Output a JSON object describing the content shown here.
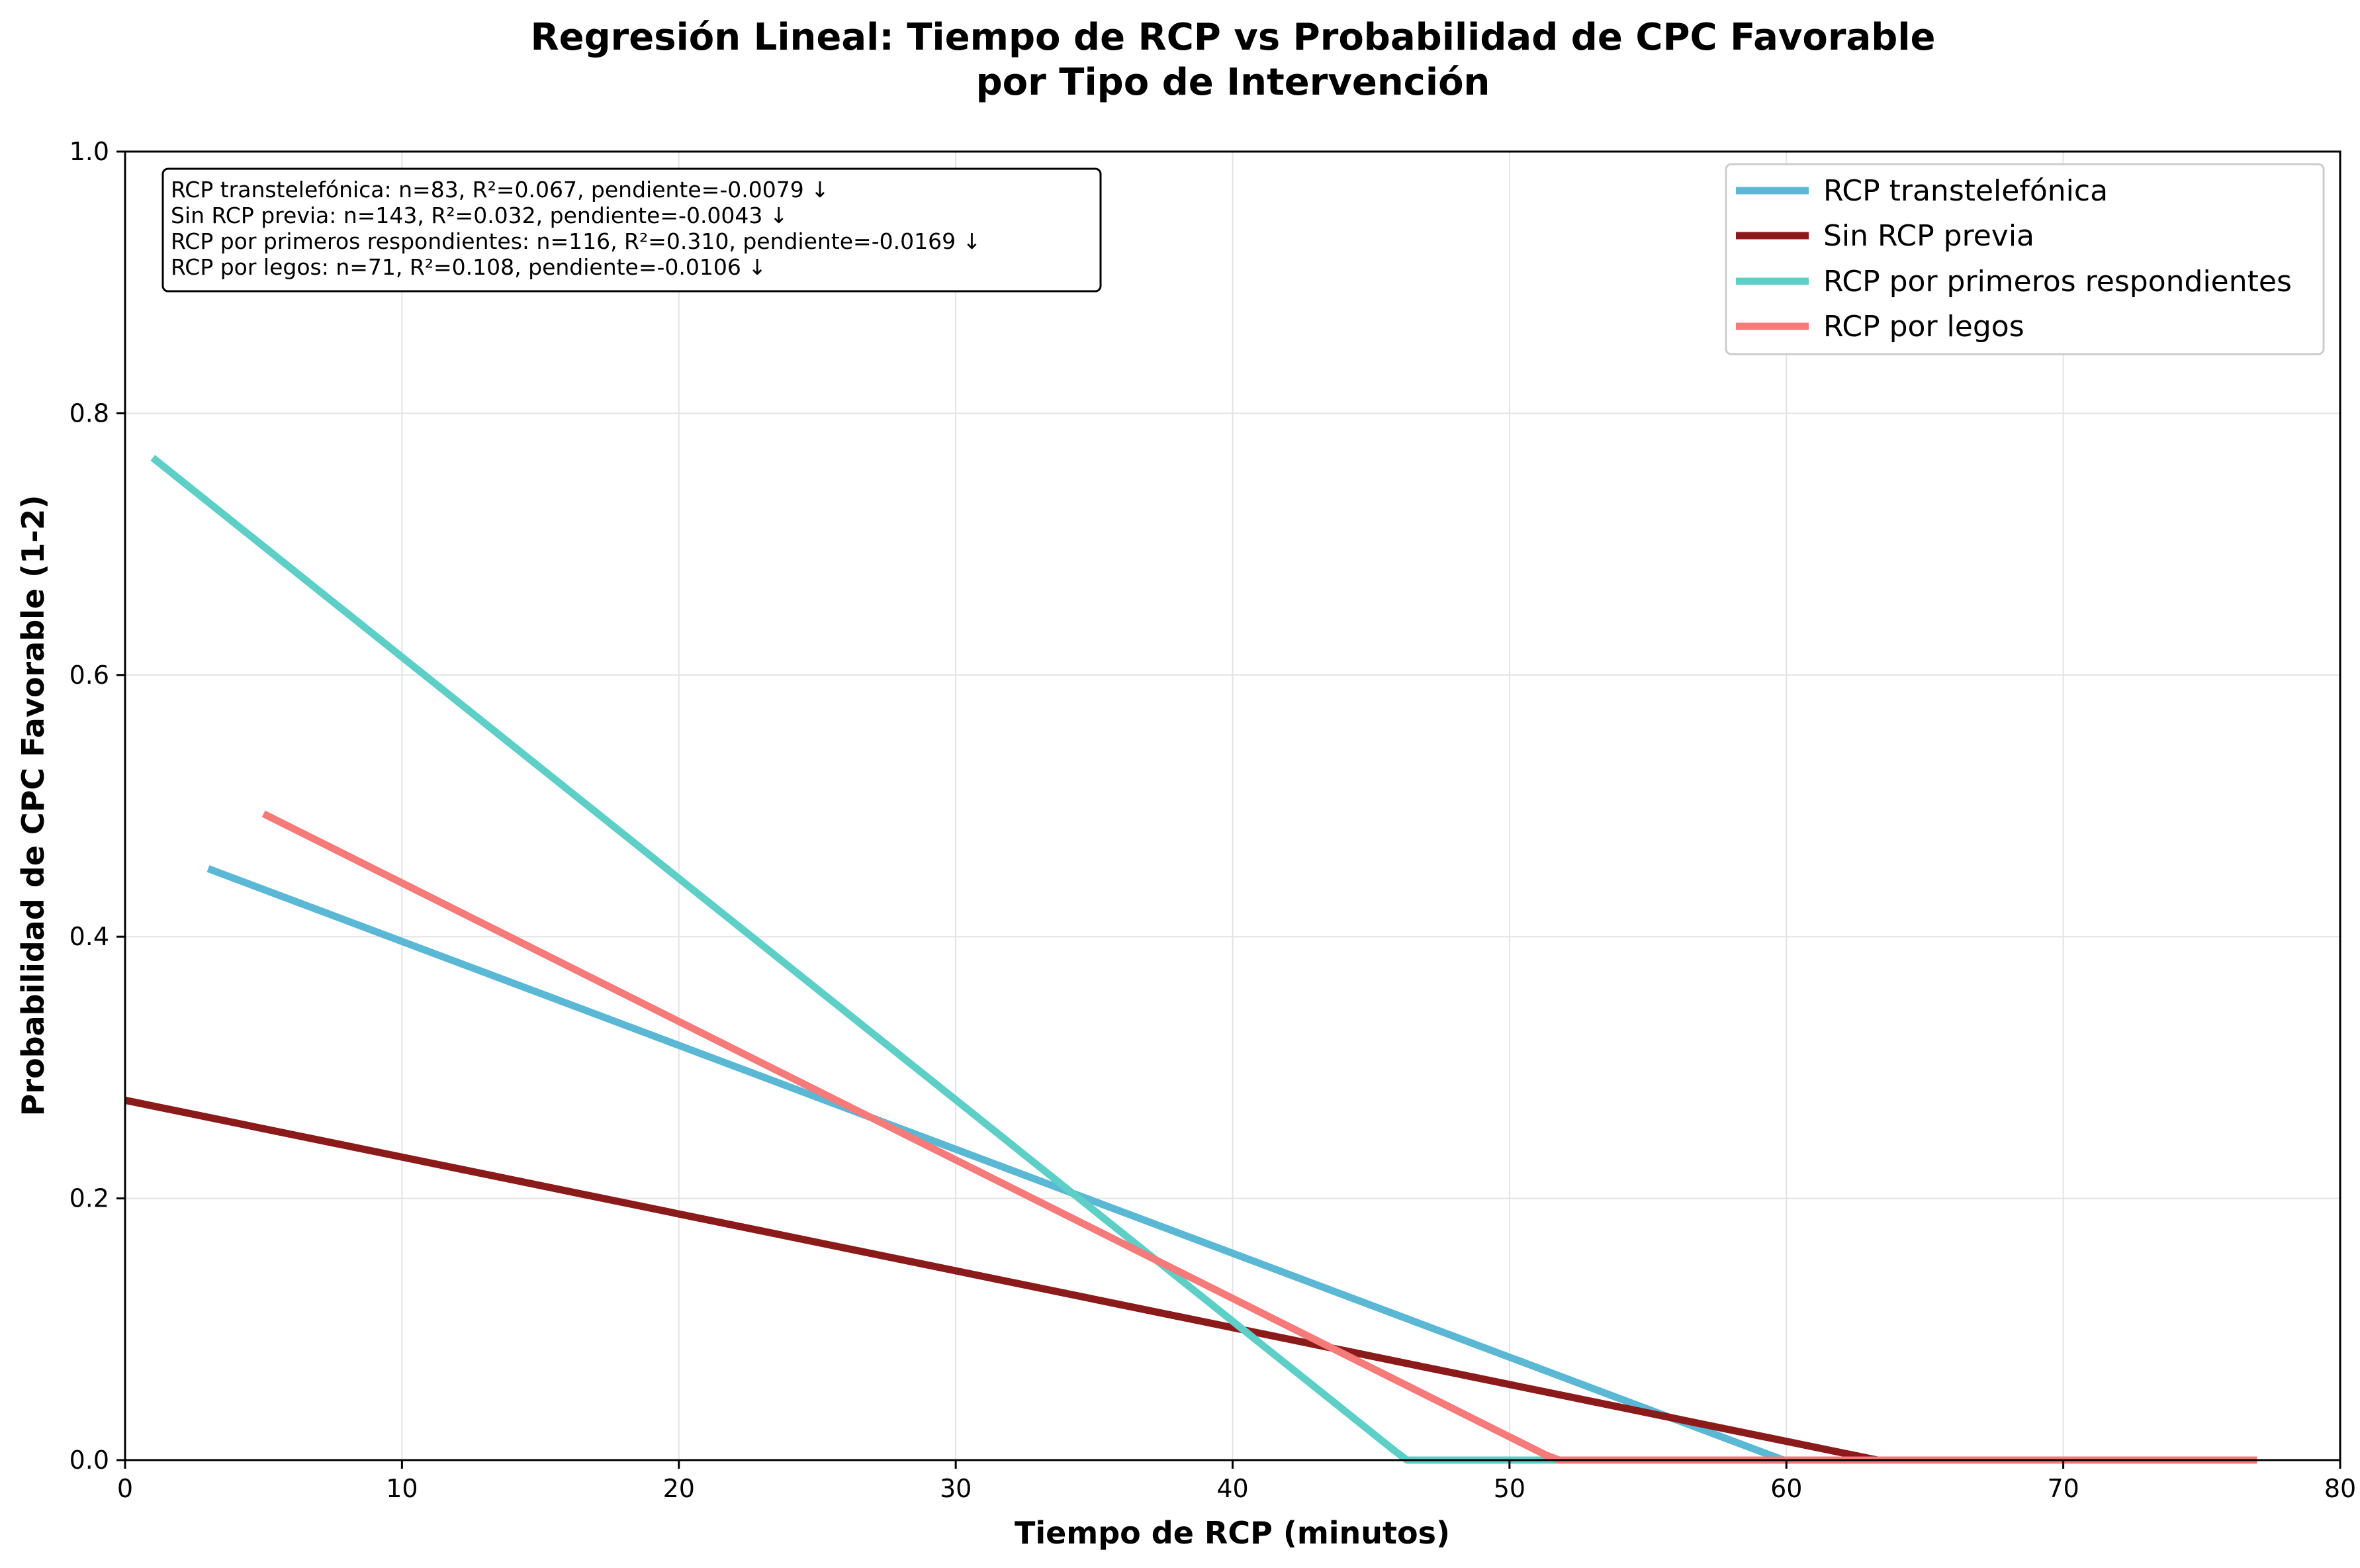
{
  "chart_data": {
    "type": "line",
    "title": "Regresión Lineal: Tiempo de RCP vs Probabilidad de CPC Favorable",
    "subtitle": "por Tipo de Intervención",
    "xlabel": "Tiempo de RCP (minutos)",
    "ylabel": "Probabilidad de CPC Favorable (1-2)",
    "xlim": [
      0,
      80
    ],
    "ylim": [
      0,
      1
    ],
    "x_ticks": [
      "0",
      "10",
      "20",
      "30",
      "40",
      "50",
      "60",
      "70",
      "80"
    ],
    "y_ticks": [
      "0.0",
      "0.2",
      "0.4",
      "0.6",
      "0.8",
      "1.0"
    ],
    "grid": true,
    "legend_position": "top-right",
    "stats_box_position": "top-left",
    "series": [
      {
        "name": "RCP transtelefónica",
        "color": "#5AB8D4",
        "points": [
          [
            3,
            0.452
          ],
          [
            59.9,
            0.0
          ],
          [
            60,
            0.0
          ]
        ]
      },
      {
        "name": "Sin RCP previa",
        "color": "#8B1A1A",
        "points": [
          [
            0,
            0.275
          ],
          [
            63.3,
            0.0
          ],
          [
            77,
            0.0
          ]
        ]
      },
      {
        "name": "RCP por primeros respondientes",
        "color": "#5ECFC6",
        "points": [
          [
            1,
            0.766
          ],
          [
            45.8,
            0.008
          ],
          [
            46.3,
            0.0
          ],
          [
            60,
            0.0
          ]
        ]
      },
      {
        "name": "RCP por legos",
        "color": "#F57A7A",
        "points": [
          [
            5,
            0.494
          ],
          [
            51.3,
            0.004
          ],
          [
            51.8,
            0.0
          ],
          [
            77,
            0.0
          ]
        ]
      }
    ],
    "annotations": [
      "RCP transtelefónica: n=83, R²=0.067, pendiente=-0.0079 ↓",
      "Sin RCP previa: n=143, R²=0.032, pendiente=-0.0043 ↓",
      "RCP por primeros respondientes: n=116, R²=0.310, pendiente=-0.0169 ↓",
      "RCP por legos: n=71, R²=0.108, pendiente=-0.0106 ↓"
    ]
  }
}
